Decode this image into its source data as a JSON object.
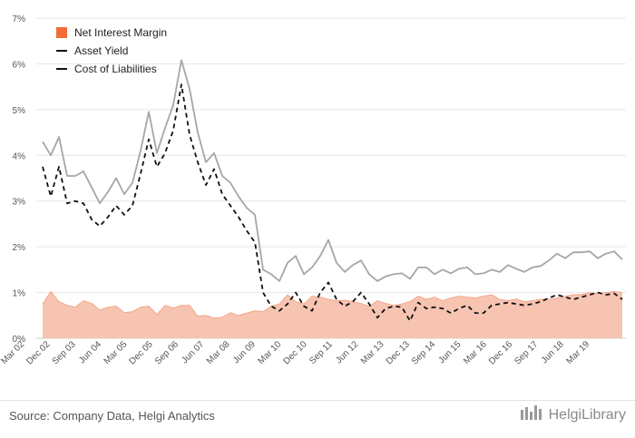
{
  "chart_data": {
    "type": "line",
    "title": "",
    "xlabel": "",
    "ylabel": "",
    "ylim": [
      0,
      7
    ],
    "yticks": [
      "0%",
      "1%",
      "2%",
      "3%",
      "4%",
      "5%",
      "6%",
      "7%"
    ],
    "grid": true,
    "legend_position": "top-left",
    "x_tick_labels": [
      "Mar 02",
      "Dec 02",
      "Sep 03",
      "Jun 04",
      "Mar 05",
      "Dec 05",
      "Sep 06",
      "Jun 07",
      "Mar 08",
      "Jun 09",
      "Mar 10",
      "Dec 10",
      "Sep 11",
      "Jun 12",
      "Mar 13",
      "Dec 13",
      "Sep 14",
      "Jun 15",
      "Mar 16",
      "Dec 16",
      "Sep 17",
      "Jun 18",
      "Mar 19"
    ],
    "series": [
      {
        "name": "Net Interest Margin",
        "style": "area",
        "color": "#f7c4b2",
        "legend_color": "#f26b38",
        "x": [
          2002.0,
          2002.25,
          2002.5,
          2002.75,
          2003.0,
          2003.25,
          2003.5,
          2003.75,
          2004.0,
          2004.25,
          2004.5,
          2004.75,
          2005.0,
          2005.25,
          2005.5,
          2005.75,
          2006.0,
          2006.25,
          2006.5,
          2006.75,
          2007.0,
          2007.25,
          2007.5,
          2007.75,
          2008.0,
          2008.25,
          2008.5,
          2008.75,
          2009.0,
          2009.25,
          2009.5,
          2009.75,
          2010.0,
          2010.25,
          2010.5,
          2010.75,
          2011.0,
          2011.25,
          2011.5,
          2011.75,
          2012.0,
          2012.25,
          2012.5,
          2012.75,
          2013.0,
          2013.25,
          2013.5,
          2013.75,
          2014.0,
          2014.25,
          2014.5,
          2014.75,
          2015.0,
          2015.25,
          2015.5,
          2015.75,
          2016.0,
          2016.25,
          2016.5,
          2016.75,
          2017.0,
          2017.25,
          2017.5,
          2017.75,
          2018.0,
          2018.25,
          2018.5,
          2018.75,
          2019.0,
          2019.25,
          2019.5,
          2019.75
        ],
        "values": [
          0.75,
          1.02,
          0.8,
          0.72,
          0.68,
          0.82,
          0.76,
          0.62,
          0.68,
          0.7,
          0.56,
          0.58,
          0.68,
          0.7,
          0.52,
          0.72,
          0.66,
          0.72,
          0.72,
          0.48,
          0.5,
          0.44,
          0.46,
          0.56,
          0.5,
          0.55,
          0.6,
          0.58,
          0.7,
          0.75,
          0.95,
          0.8,
          0.75,
          0.92,
          0.9,
          0.85,
          0.82,
          0.83,
          0.8,
          0.76,
          0.7,
          0.82,
          0.76,
          0.72,
          0.75,
          0.8,
          0.92,
          0.85,
          0.9,
          0.82,
          0.88,
          0.92,
          0.9,
          0.88,
          0.92,
          0.95,
          0.85,
          0.82,
          0.86,
          0.8,
          0.82,
          0.85,
          0.85,
          0.88,
          0.92,
          0.95,
          0.96,
          1.0,
          0.98,
          1.0,
          1.02,
          1.0
        ]
      },
      {
        "name": "Asset Yield",
        "style": "line",
        "color": "#a6a6a6",
        "legend_color": "#111111",
        "x": [
          2002.0,
          2002.25,
          2002.5,
          2002.75,
          2003.0,
          2003.25,
          2003.5,
          2003.75,
          2004.0,
          2004.25,
          2004.5,
          2004.75,
          2005.0,
          2005.25,
          2005.5,
          2005.75,
          2006.0,
          2006.25,
          2006.5,
          2006.75,
          2007.0,
          2007.25,
          2007.5,
          2007.75,
          2008.0,
          2008.25,
          2008.5,
          2008.75,
          2009.0,
          2009.25,
          2009.5,
          2009.75,
          2010.0,
          2010.25,
          2010.5,
          2010.75,
          2011.0,
          2011.25,
          2011.5,
          2011.75,
          2012.0,
          2012.25,
          2012.5,
          2012.75,
          2013.0,
          2013.25,
          2013.5,
          2013.75,
          2014.0,
          2014.25,
          2014.5,
          2014.75,
          2015.0,
          2015.25,
          2015.5,
          2015.75,
          2016.0,
          2016.25,
          2016.5,
          2016.75,
          2017.0,
          2017.25,
          2017.5,
          2017.75,
          2018.0,
          2018.25,
          2018.5,
          2018.75,
          2019.0,
          2019.25,
          2019.5,
          2019.75
        ],
        "values": [
          4.3,
          4.0,
          4.4,
          3.55,
          3.55,
          3.65,
          3.3,
          2.95,
          3.2,
          3.5,
          3.15,
          3.4,
          4.1,
          4.95,
          4.05,
          4.6,
          5.1,
          6.08,
          5.45,
          4.5,
          3.85,
          4.05,
          3.55,
          3.4,
          3.1,
          2.85,
          2.7,
          1.5,
          1.4,
          1.25,
          1.65,
          1.8,
          1.4,
          1.55,
          1.8,
          2.15,
          1.65,
          1.45,
          1.6,
          1.7,
          1.4,
          1.25,
          1.35,
          1.4,
          1.42,
          1.3,
          1.55,
          1.55,
          1.4,
          1.5,
          1.42,
          1.52,
          1.55,
          1.4,
          1.42,
          1.5,
          1.45,
          1.6,
          1.52,
          1.45,
          1.55,
          1.58,
          1.7,
          1.85,
          1.75,
          1.88,
          1.88,
          1.9,
          1.75,
          1.85,
          1.9,
          1.72
        ]
      },
      {
        "name": "Cost of Liabilities",
        "style": "dashed",
        "color": "#111111",
        "legend_color": "#111111",
        "x": [
          2002.0,
          2002.25,
          2002.5,
          2002.75,
          2003.0,
          2003.25,
          2003.5,
          2003.75,
          2004.0,
          2004.25,
          2004.5,
          2004.75,
          2005.0,
          2005.25,
          2005.5,
          2005.75,
          2006.0,
          2006.25,
          2006.5,
          2006.75,
          2007.0,
          2007.25,
          2007.5,
          2007.75,
          2008.0,
          2008.25,
          2008.5,
          2008.75,
          2009.0,
          2009.25,
          2009.5,
          2009.75,
          2010.0,
          2010.25,
          2010.5,
          2010.75,
          2011.0,
          2011.25,
          2011.5,
          2011.75,
          2012.0,
          2012.25,
          2012.5,
          2012.75,
          2013.0,
          2013.25,
          2013.5,
          2013.75,
          2014.0,
          2014.25,
          2014.5,
          2014.75,
          2015.0,
          2015.25,
          2015.5,
          2015.75,
          2016.0,
          2016.25,
          2016.5,
          2016.75,
          2017.0,
          2017.25,
          2017.5,
          2017.75,
          2018.0,
          2018.25,
          2018.5,
          2018.75,
          2019.0,
          2019.25,
          2019.5,
          2019.75
        ],
        "values": [
          3.75,
          3.1,
          3.75,
          2.95,
          3.0,
          2.95,
          2.6,
          2.45,
          2.65,
          2.9,
          2.7,
          2.9,
          3.6,
          4.35,
          3.75,
          4.05,
          4.55,
          5.55,
          4.45,
          3.85,
          3.35,
          3.7,
          3.15,
          2.9,
          2.65,
          2.35,
          2.1,
          1.0,
          0.7,
          0.6,
          0.75,
          1.0,
          0.7,
          0.6,
          1.0,
          1.22,
          0.85,
          0.7,
          0.8,
          1.0,
          0.75,
          0.45,
          0.65,
          0.7,
          0.68,
          0.38,
          0.78,
          0.65,
          0.68,
          0.65,
          0.55,
          0.65,
          0.72,
          0.55,
          0.55,
          0.72,
          0.75,
          0.78,
          0.75,
          0.72,
          0.75,
          0.8,
          0.88,
          0.95,
          0.9,
          0.85,
          0.9,
          0.95,
          1.0,
          0.95,
          0.98,
          0.85
        ]
      }
    ]
  },
  "footer": {
    "source": "Source: Company Data, Helgi Analytics",
    "brand": "HelgiLibrary"
  }
}
